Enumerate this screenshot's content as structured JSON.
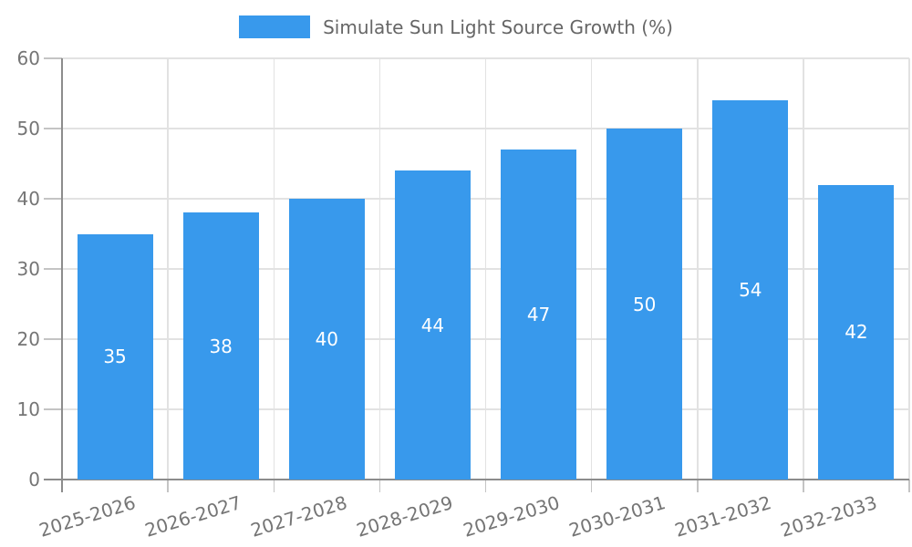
{
  "chart_data": {
    "type": "bar",
    "title": "",
    "legend_label": "Simulate Sun Light Source Growth (%)",
    "legend_position": "top-center",
    "categories": [
      "2025-2026",
      "2026-2027",
      "2027-2028",
      "2028-2029",
      "2029-2030",
      "2030-2031",
      "2031-2032",
      "2032-2033"
    ],
    "values": [
      35,
      38,
      40,
      44,
      47,
      50,
      54,
      42
    ],
    "xlabel": "",
    "ylabel": "",
    "ylim": [
      0,
      60
    ],
    "yticks": [
      0,
      10,
      20,
      30,
      40,
      50,
      60
    ],
    "grid": true,
    "bar_value_labels_visible": true,
    "x_label_rotation_deg": -17,
    "colors": {
      "bar": "#3899EC",
      "grid": "#E2E2E2",
      "axis": "#8C8C8C",
      "tick": "#C4C4C4",
      "tick_label": "#757575",
      "legend_text": "#666666",
      "value_label": "#FFFFFF",
      "background": "#FFFFFF"
    }
  }
}
